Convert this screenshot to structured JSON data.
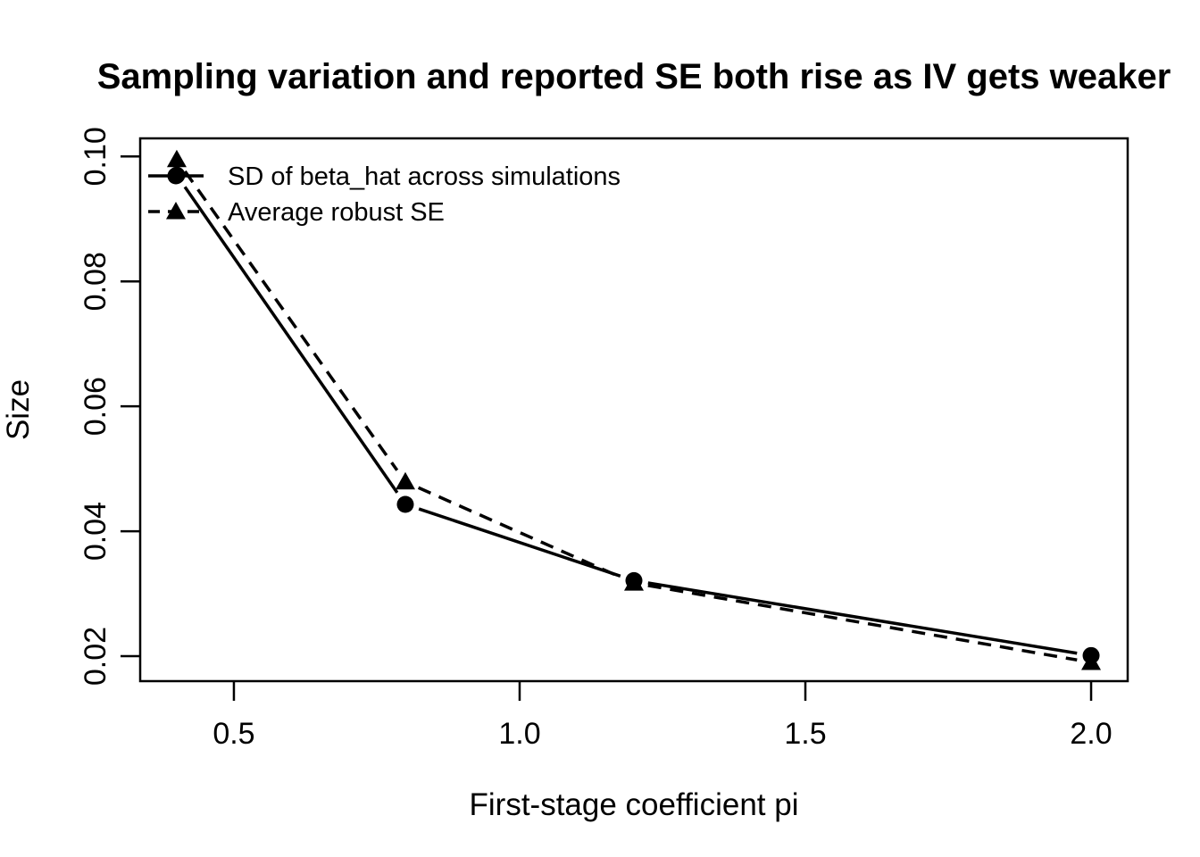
{
  "chart_data": {
    "type": "line",
    "title": "Sampling variation and reported SE both rise as IV gets weaker",
    "xlabel": "First-stage coefficient pi",
    "ylabel": "Size",
    "x": [
      0.4,
      0.8,
      1.2,
      2.0
    ],
    "series": [
      {
        "name": "SD of beta_hat across simulations",
        "marker": "circle",
        "line": "solid",
        "values": [
          0.097,
          0.0443,
          0.0321,
          0.0201
        ]
      },
      {
        "name": "Average robust SE",
        "marker": "triangle",
        "line": "dashed",
        "values": [
          0.0995,
          0.0479,
          0.0317,
          0.019
        ]
      }
    ],
    "xlim": [
      0.336,
      2.064
    ],
    "ylim": [
      0.016,
      0.1029
    ],
    "xticks": {
      "values": [
        0.5,
        1.0,
        1.5,
        2.0
      ],
      "labels": [
        "0.5",
        "1.0",
        "1.5",
        "2.0"
      ]
    },
    "yticks": {
      "values": [
        0.02,
        0.04,
        0.06,
        0.08,
        0.1
      ],
      "labels": [
        "0.02",
        "0.04",
        "0.06",
        "0.08",
        "0.10"
      ]
    },
    "grid": false,
    "legend_position": "topleft",
    "colors": {
      "foreground": "#000000",
      "background": "#ffffff"
    }
  }
}
